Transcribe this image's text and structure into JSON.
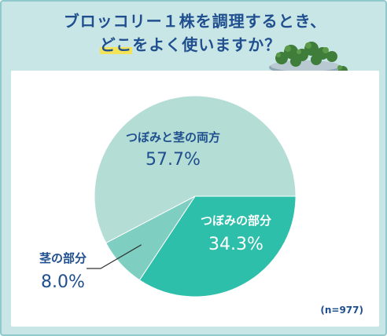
{
  "title": {
    "line1": "ブロッコリー１株を調理するとき、",
    "line2_highlight": "どこ",
    "line2_rest": "をよく使いますか？"
  },
  "sample_note": "(n=977)",
  "colors": {
    "background": "#c9e6e6",
    "title": "#1f4f8e",
    "highlight": "#f2e35a",
    "slice_both": "#b4ddd5",
    "slice_florets": "#2ebfaa",
    "slice_stem": "#7ecfc1"
  },
  "chart_data": {
    "type": "pie",
    "title": "ブロッコリー１株を調理するとき、どこをよく使いますか？",
    "note": "(n=977)",
    "slices": [
      {
        "label": "つぼみと茎の両方",
        "value": 57.7,
        "value_label": "57.7%",
        "color": "#b4ddd5"
      },
      {
        "label": "つぼみの部分",
        "value": 34.3,
        "value_label": "34.3%",
        "color": "#2ebfaa"
      },
      {
        "label": "茎の部分",
        "value": 8.0,
        "value_label": "8.0%",
        "color": "#7ecfc1"
      }
    ]
  }
}
